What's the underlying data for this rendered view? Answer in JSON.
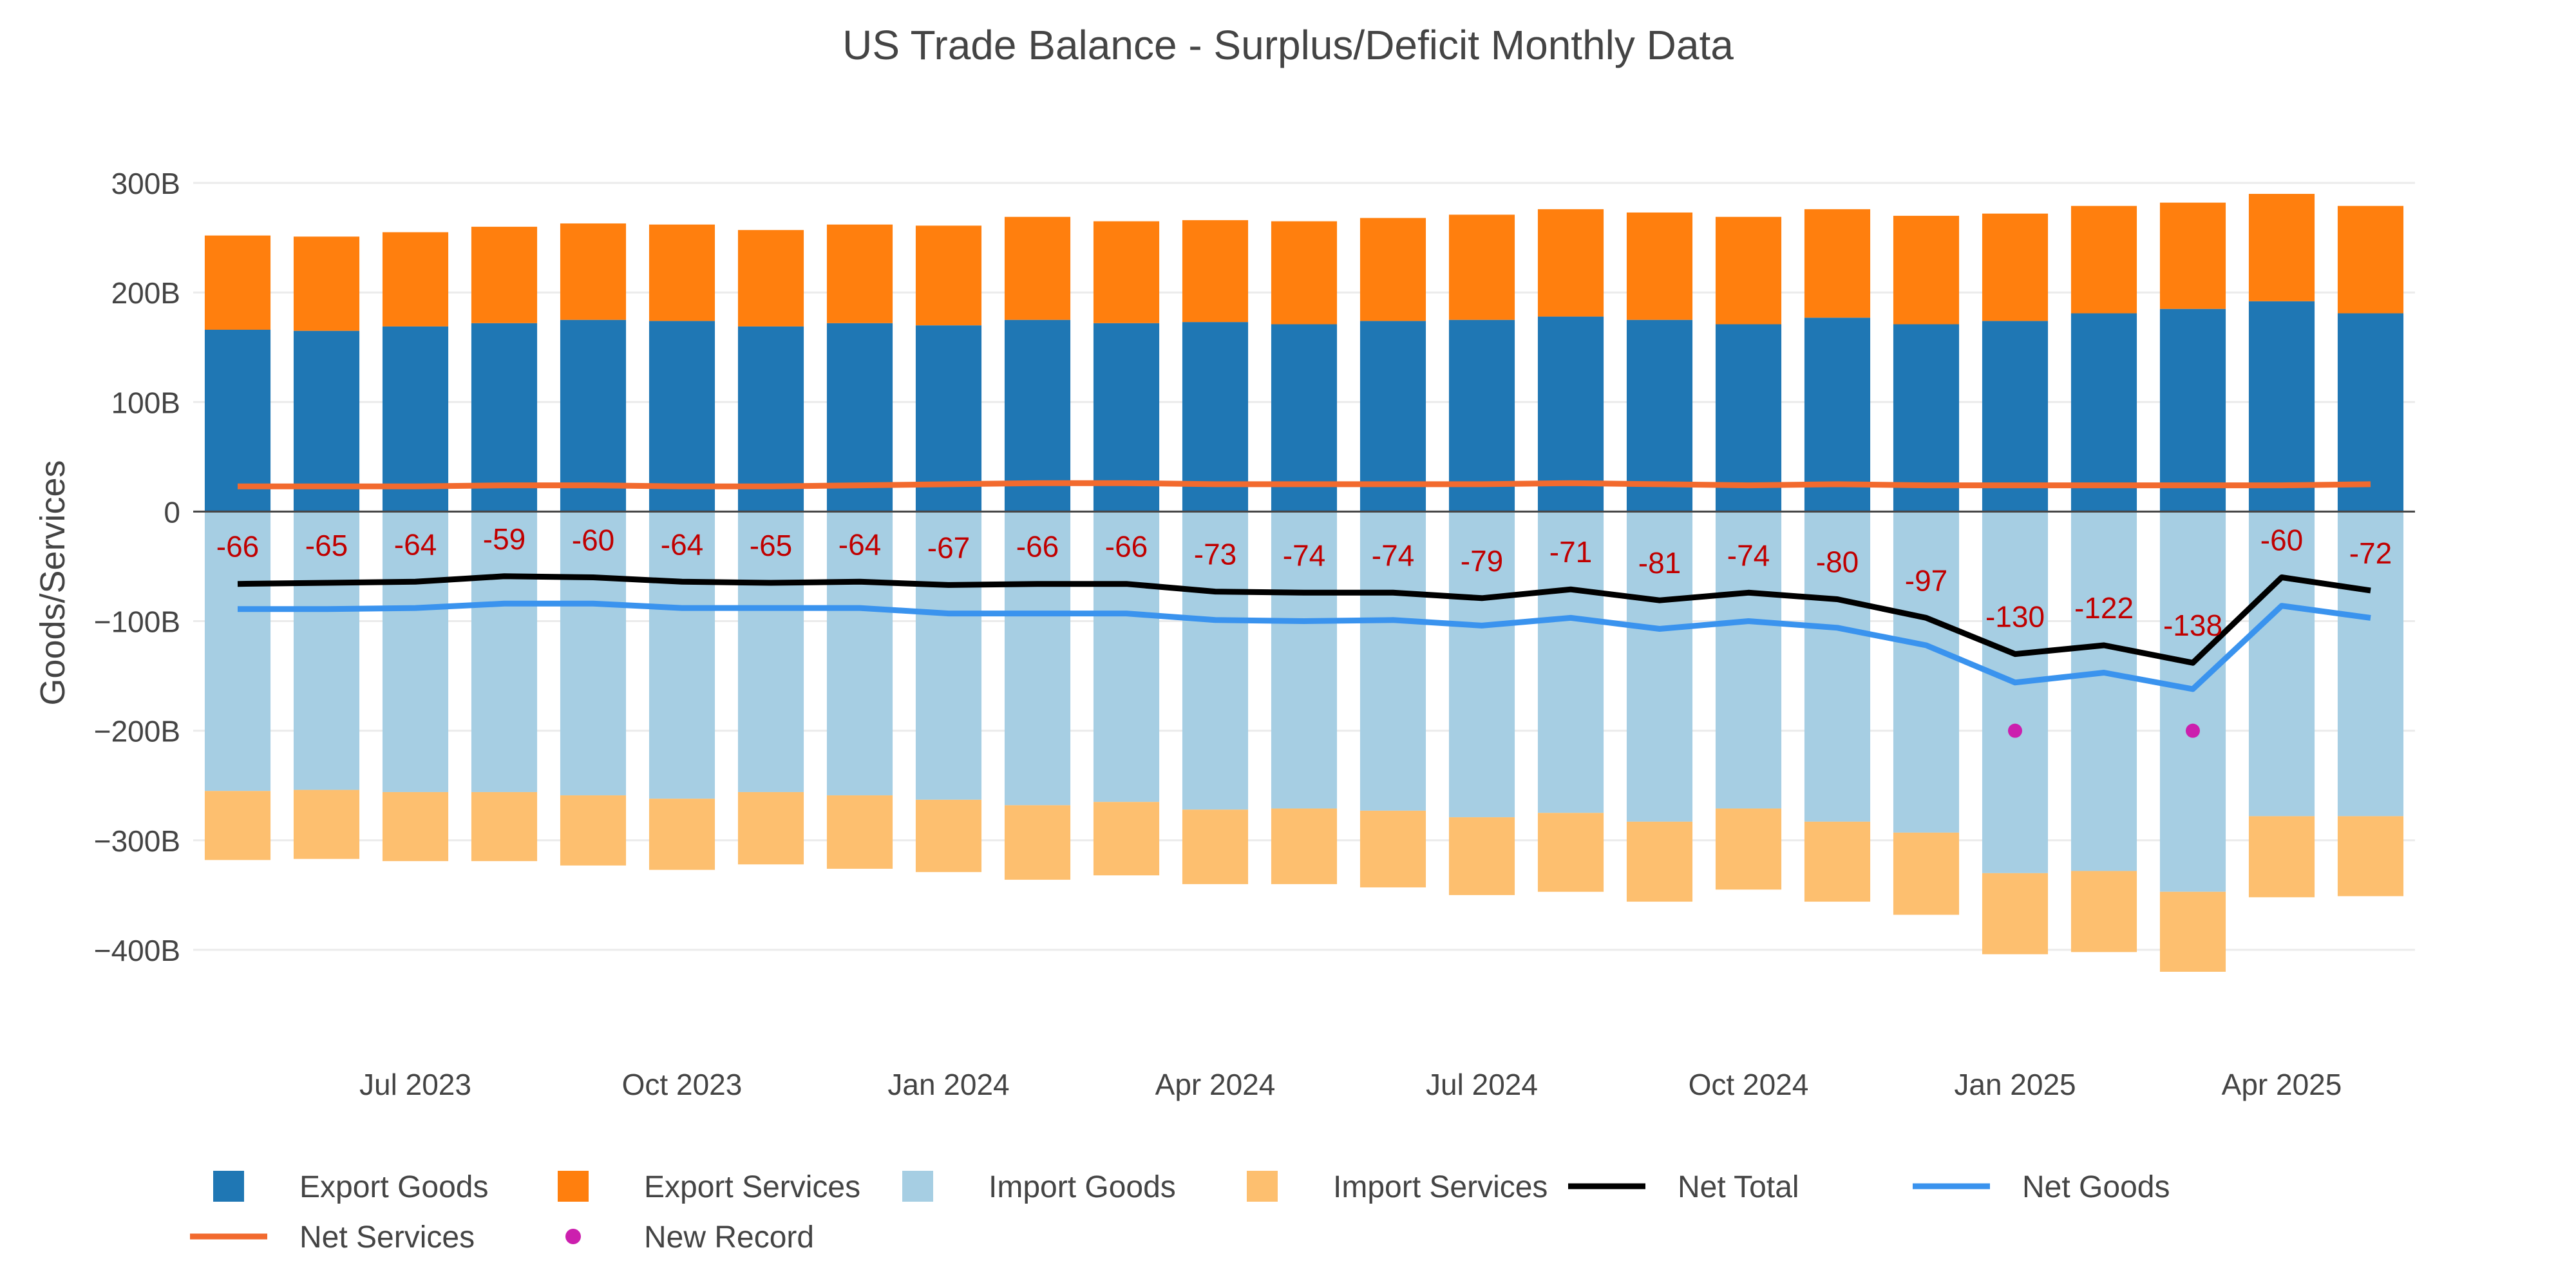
{
  "chart_data": {
    "type": "bar",
    "title": "US Trade Balance - Surplus/Deficit Monthly Data",
    "ylabel": "Goods/Services",
    "xlabel": "",
    "ylim": [
      -450,
      320
    ],
    "y_ticks": [
      300,
      200,
      100,
      0,
      -100,
      -200,
      -300,
      -400
    ],
    "y_tick_labels": [
      "300B",
      "200B",
      "100B",
      "0",
      "−100B",
      "−200B",
      "−300B",
      "−400B"
    ],
    "x": [
      "2023-05",
      "2023-06",
      "2023-07",
      "2023-08",
      "2023-09",
      "2023-10",
      "2023-11",
      "2023-12",
      "2024-01",
      "2024-02",
      "2024-03",
      "2024-04",
      "2024-05",
      "2024-06",
      "2024-07",
      "2024-08",
      "2024-09",
      "2024-10",
      "2024-11",
      "2024-12",
      "2025-01",
      "2025-02",
      "2025-03",
      "2025-04",
      "2025-05"
    ],
    "x_ticks": [
      {
        "x": "2023-07",
        "label": "Jul 2023"
      },
      {
        "x": "2023-10",
        "label": "Oct 2023"
      },
      {
        "x": "2024-01",
        "label": "Jan 2024"
      },
      {
        "x": "2024-04",
        "label": "Apr 2024"
      },
      {
        "x": "2024-07",
        "label": "Jul 2024"
      },
      {
        "x": "2024-10",
        "label": "Oct 2024"
      },
      {
        "x": "2025-01",
        "label": "Jan 2025"
      },
      {
        "x": "2025-04",
        "label": "Apr 2025"
      }
    ],
    "barmode": "relative",
    "series": [
      {
        "name": "Export Goods",
        "kind": "bar",
        "color": "#1f77b4",
        "values": [
          166,
          165,
          169,
          172,
          175,
          174,
          169,
          172,
          170,
          175,
          172,
          173,
          171,
          174,
          175,
          178,
          175,
          171,
          177,
          171,
          174,
          181,
          185,
          192,
          181
        ]
      },
      {
        "name": "Export Services",
        "kind": "bar",
        "color": "#ff7f0e",
        "values": [
          86,
          86,
          86,
          88,
          88,
          88,
          88,
          90,
          91,
          94,
          93,
          93,
          94,
          94,
          96,
          98,
          98,
          98,
          99,
          99,
          98,
          98,
          97,
          98,
          98
        ]
      },
      {
        "name": "Import Goods",
        "kind": "bar",
        "color": "#a6cee3",
        "values": [
          -255,
          -254,
          -256,
          -256,
          -259,
          -262,
          -256,
          -259,
          -263,
          -268,
          -265,
          -272,
          -271,
          -273,
          -279,
          -275,
          -283,
          -271,
          -283,
          -293,
          -330,
          -328,
          -347,
          -278,
          -278
        ]
      },
      {
        "name": "Import Services",
        "kind": "bar",
        "color": "#fdbf6f",
        "values": [
          -63,
          -63,
          -63,
          -63,
          -64,
          -65,
          -66,
          -67,
          -66,
          -68,
          -67,
          -68,
          -69,
          -70,
          -71,
          -72,
          -73,
          -74,
          -73,
          -75,
          -74,
          -74,
          -73,
          -74,
          -73
        ]
      },
      {
        "name": "Net Total",
        "kind": "line",
        "color": "#000000",
        "values": [
          -66,
          -65,
          -64,
          -59,
          -60,
          -64,
          -65,
          -64,
          -67,
          -66,
          -66,
          -73,
          -74,
          -74,
          -79,
          -71,
          -81,
          -74,
          -80,
          -97,
          -130,
          -122,
          -138,
          -60,
          -72
        ]
      },
      {
        "name": "Net Goods",
        "kind": "line",
        "color": "#3a93ee",
        "values": [
          -89,
          -89,
          -88,
          -84,
          -84,
          -88,
          -88,
          -88,
          -93,
          -93,
          -93,
          -99,
          -100,
          -99,
          -104,
          -97,
          -107,
          -100,
          -106,
          -122,
          -156,
          -147,
          -162,
          -86,
          -97
        ]
      },
      {
        "name": "Net Services",
        "kind": "line",
        "color": "#f26a2e",
        "values": [
          23,
          23,
          23,
          24,
          24,
          23,
          23,
          24,
          25,
          26,
          26,
          25,
          25,
          25,
          25,
          26,
          25,
          24,
          25,
          24,
          24,
          24,
          24,
          24,
          25
        ]
      },
      {
        "name": "New Record",
        "kind": "marker",
        "color": "#cc1fae",
        "points": [
          {
            "x": "2025-01",
            "y": -200
          },
          {
            "x": "2025-03",
            "y": -200
          }
        ]
      }
    ],
    "data_labels": [
      "-66",
      "-65",
      "-64",
      "-59",
      "-60",
      "-64",
      "-65",
      "-64",
      "-67",
      "-66",
      "-66",
      "-73",
      "-74",
      "-74",
      "-79",
      "-71",
      "-81",
      "-74",
      "-80",
      "-97",
      "-130",
      "-122",
      "-138",
      "-60",
      "-72"
    ],
    "data_label_color": "#c00000",
    "legend": {
      "placement": "bottom",
      "items": [
        {
          "name": "Export Goods",
          "symbol": "square",
          "color": "#1f77b4"
        },
        {
          "name": "Export Services",
          "symbol": "square",
          "color": "#ff7f0e"
        },
        {
          "name": "Import Goods",
          "symbol": "square",
          "color": "#a6cee3"
        },
        {
          "name": "Import Services",
          "symbol": "square",
          "color": "#fdbf6f"
        },
        {
          "name": "Net Total",
          "symbol": "line",
          "color": "#000000"
        },
        {
          "name": "Net Goods",
          "symbol": "line",
          "color": "#3a93ee"
        },
        {
          "name": "Net Services",
          "symbol": "line",
          "color": "#f26a2e"
        },
        {
          "name": "New Record",
          "symbol": "dot",
          "color": "#cc1fae"
        }
      ]
    },
    "grid": true
  }
}
